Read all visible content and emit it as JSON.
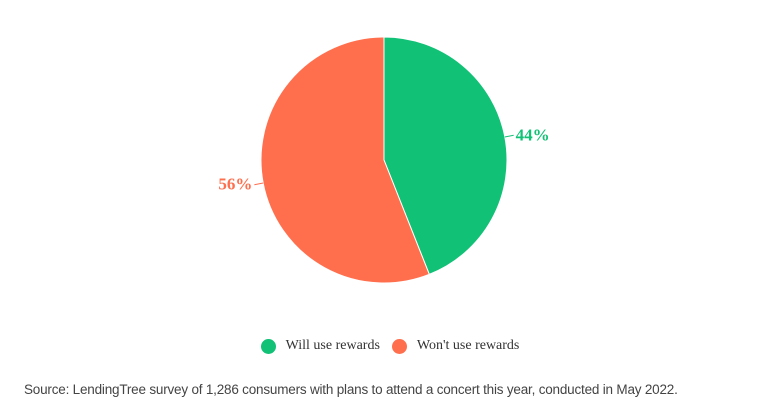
{
  "chart_data": {
    "type": "pie",
    "title": "",
    "slices": [
      {
        "label": "Will use rewards",
        "value": 44,
        "display": "44%",
        "color": "#10C176"
      },
      {
        "label": "Won't use rewards",
        "value": 56,
        "display": "56%",
        "color": "#FF6F4E"
      }
    ],
    "start_angle": "top, clockwise",
    "legend_position": "bottom-center"
  },
  "source": "Source: LendingTree survey of 1,286 consumers with plans to attend a concert this year, conducted in May 2022."
}
